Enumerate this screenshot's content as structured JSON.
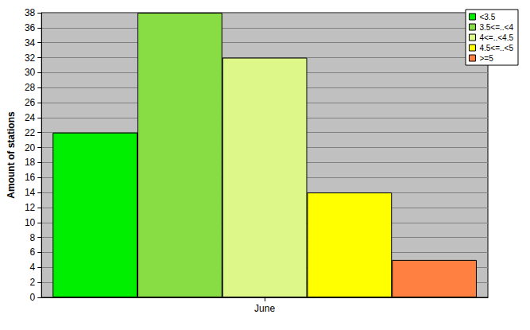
{
  "chart_data": {
    "type": "bar",
    "y_label": "Amount of stations",
    "categories": [
      "June"
    ],
    "series": [
      {
        "name": "<3.5",
        "color": "#00ee00",
        "values": [
          22
        ]
      },
      {
        "name": "3.5<=..<4",
        "color": "#88dd44",
        "values": [
          38
        ]
      },
      {
        "name": "4<=..<4.5",
        "color": "#ddf888",
        "values": [
          32
        ]
      },
      {
        "name": "4.5<=..<5",
        "color": "#ffff00",
        "values": [
          14
        ]
      },
      {
        "name": ">=5",
        "color": "#ff8040",
        "values": [
          5
        ]
      }
    ],
    "ylim": [
      0,
      38
    ],
    "yticks": [
      0,
      2,
      4,
      6,
      8,
      10,
      12,
      14,
      16,
      18,
      20,
      22,
      24,
      26,
      28,
      30,
      32,
      34,
      36,
      38
    ],
    "grid": true,
    "legend": "top-right"
  }
}
